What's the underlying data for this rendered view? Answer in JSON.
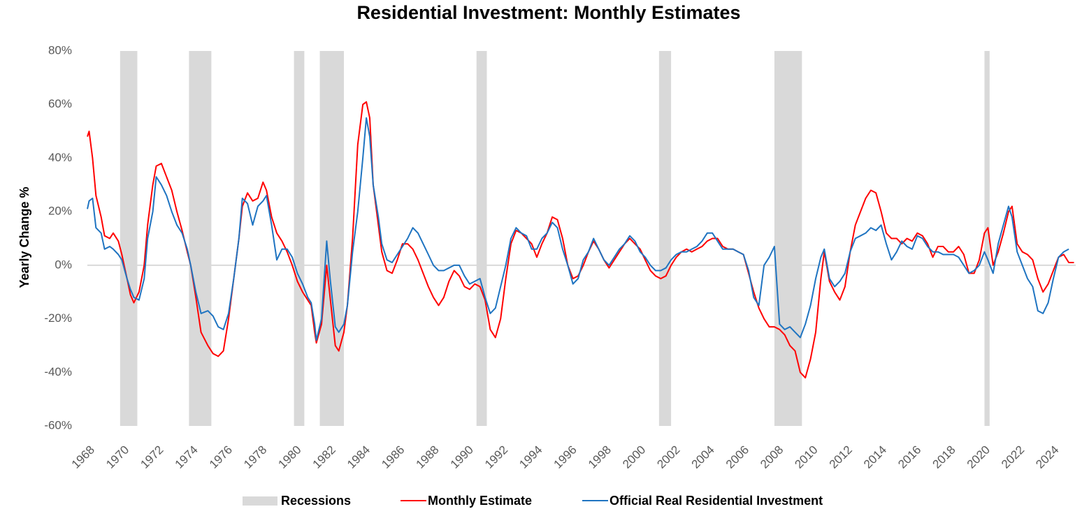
{
  "chart_data": {
    "type": "line",
    "title": "Residential Investment: Monthly Estimates",
    "y_label": "Yearly Change %",
    "x": [
      1968.0,
      1968.1,
      1968.3,
      1968.5,
      1968.8,
      1969.0,
      1969.3,
      1969.5,
      1969.8,
      1970.0,
      1970.3,
      1970.5,
      1970.7,
      1971.0,
      1971.3,
      1971.5,
      1971.8,
      1972.0,
      1972.3,
      1972.6,
      1972.9,
      1973.2,
      1973.5,
      1973.8,
      1974.0,
      1974.3,
      1974.6,
      1975.0,
      1975.3,
      1975.6,
      1975.9,
      1976.2,
      1976.5,
      1976.8,
      1977.0,
      1977.3,
      1977.6,
      1977.9,
      1978.2,
      1978.4,
      1978.7,
      1979.0,
      1979.3,
      1979.6,
      1979.9,
      1980.2,
      1980.5,
      1980.8,
      1981.0,
      1981.2,
      1981.3,
      1981.6,
      1981.9,
      1982.1,
      1982.4,
      1982.6,
      1982.9,
      1983.1,
      1983.4,
      1983.7,
      1984.0,
      1984.2,
      1984.4,
      1984.6,
      1984.9,
      1985.1,
      1985.4,
      1985.7,
      1986.0,
      1986.3,
      1986.6,
      1986.9,
      1987.2,
      1987.5,
      1987.8,
      1988.1,
      1988.4,
      1988.7,
      1989.0,
      1989.3,
      1989.6,
      1989.9,
      1990.2,
      1990.5,
      1990.8,
      1991.1,
      1991.4,
      1991.7,
      1992.0,
      1992.3,
      1992.6,
      1992.9,
      1993.2,
      1993.5,
      1993.8,
      1994.1,
      1994.4,
      1994.7,
      1995.0,
      1995.3,
      1995.6,
      1995.9,
      1996.2,
      1996.5,
      1996.8,
      1997.1,
      1997.4,
      1997.7,
      1998.0,
      1998.3,
      1998.6,
      1998.9,
      1999.2,
      1999.5,
      1999.8,
      2000.1,
      2000.4,
      2000.7,
      2001.0,
      2001.3,
      2001.6,
      2001.9,
      2002.2,
      2002.5,
      2002.8,
      2003.1,
      2003.4,
      2003.7,
      2004.0,
      2004.3,
      2004.6,
      2004.9,
      2005.2,
      2005.5,
      2005.8,
      2006.1,
      2006.4,
      2006.7,
      2007.0,
      2007.3,
      2007.6,
      2007.9,
      2008.2,
      2008.5,
      2008.8,
      2009.1,
      2009.4,
      2009.7,
      2010.0,
      2010.3,
      2010.6,
      2010.8,
      2011.1,
      2011.4,
      2011.7,
      2012.0,
      2012.3,
      2012.6,
      2012.9,
      2013.2,
      2013.5,
      2013.8,
      2014.1,
      2014.4,
      2014.7,
      2015.0,
      2015.3,
      2015.6,
      2015.9,
      2016.2,
      2016.5,
      2016.8,
      2017.1,
      2017.4,
      2017.7,
      2018.0,
      2018.3,
      2018.6,
      2018.9,
      2019.2,
      2019.5,
      2019.8,
      2020.1,
      2020.3,
      2020.6,
      2020.9,
      2021.2,
      2021.5,
      2021.7,
      2022.0,
      2022.3,
      2022.6,
      2022.9,
      2023.2,
      2023.5,
      2023.8,
      2024.1,
      2024.4,
      2024.7,
      2025.0,
      2025.3
    ],
    "series": [
      {
        "name": "Monthly Estimate",
        "color": "#ff0000",
        "values": [
          48,
          50,
          40,
          26,
          18,
          11,
          10,
          12,
          9,
          4,
          -5,
          -11,
          -14,
          -10,
          0,
          15,
          30,
          37,
          38,
          33,
          28,
          20,
          13,
          5,
          0,
          -12,
          -25,
          -30,
          -33,
          -34,
          -32,
          -20,
          -5,
          10,
          22,
          27,
          24,
          25,
          31,
          28,
          18,
          12,
          9,
          5,
          0,
          -6,
          -10,
          -13,
          -15,
          -25,
          -29,
          -22,
          0,
          -12,
          -30,
          -32,
          -25,
          -15,
          10,
          45,
          60,
          61,
          55,
          30,
          15,
          5,
          -2,
          -3,
          2,
          8,
          8,
          6,
          2,
          -3,
          -8,
          -12,
          -15,
          -12,
          -6,
          -2,
          -4,
          -8,
          -9,
          -7,
          -8,
          -13,
          -24,
          -27,
          -20,
          -5,
          8,
          13,
          12,
          10,
          8,
          3,
          8,
          12,
          18,
          17,
          10,
          0,
          -5,
          -4,
          0,
          5,
          9,
          6,
          2,
          -1,
          2,
          5,
          8,
          10,
          8,
          6,
          2,
          -2,
          -4,
          -5,
          -4,
          0,
          3,
          5,
          6,
          5,
          6,
          7,
          9,
          10,
          10,
          7,
          6,
          6,
          5,
          4,
          -3,
          -10,
          -16,
          -20,
          -23,
          -23,
          -24,
          -26,
          -30,
          -32,
          -40,
          -42,
          -35,
          -25,
          -5,
          5,
          -6,
          -10,
          -13,
          -8,
          5,
          15,
          20,
          25,
          28,
          27,
          20,
          12,
          10,
          10,
          8,
          10,
          9,
          12,
          11,
          8,
          3,
          7,
          7,
          5,
          5,
          7,
          4,
          -3,
          -3,
          2,
          12,
          14,
          0,
          5,
          12,
          20,
          22,
          8,
          5,
          4,
          2,
          -5,
          -10,
          -7,
          -2,
          3,
          4,
          1,
          1
        ]
      },
      {
        "name": "Official Real Residential Investment",
        "color": "#1f74c1",
        "values": [
          21,
          24,
          25,
          14,
          12,
          6,
          7,
          6,
          4,
          2,
          -5,
          -9,
          -12,
          -13,
          -5,
          10,
          20,
          33,
          30,
          26,
          20,
          15,
          12,
          6,
          0,
          -10,
          -18,
          -17,
          -19,
          -23,
          -24,
          -18,
          -5,
          10,
          25,
          23,
          15,
          22,
          24,
          26,
          15,
          2,
          6,
          6,
          3,
          -3,
          -7,
          -12,
          -14,
          -22,
          -28,
          -20,
          9,
          -5,
          -23,
          -25,
          -22,
          -15,
          5,
          20,
          40,
          55,
          48,
          30,
          18,
          8,
          2,
          1,
          4,
          7,
          10,
          14,
          12,
          8,
          4,
          0,
          -2,
          -2,
          -1,
          0,
          0,
          -4,
          -7,
          -6,
          -5,
          -12,
          -18,
          -16,
          -8,
          0,
          10,
          14,
          12,
          11,
          6,
          6,
          10,
          12,
          16,
          14,
          6,
          0,
          -7,
          -5,
          2,
          5,
          10,
          6,
          2,
          0,
          3,
          6,
          8,
          11,
          9,
          5,
          3,
          0,
          -2,
          -2,
          -1,
          2,
          4,
          5,
          5,
          6,
          7,
          9,
          12,
          12,
          9,
          6,
          6,
          6,
          5,
          4,
          -2,
          -12,
          -15,
          0,
          3,
          7,
          -22,
          -24,
          -23,
          -25,
          -27,
          -22,
          -15,
          -5,
          3,
          6,
          -5,
          -8,
          -6,
          -3,
          5,
          10,
          11,
          12,
          14,
          13,
          15,
          8,
          2,
          5,
          9,
          7,
          6,
          11,
          10,
          7,
          5,
          5,
          4,
          4,
          4,
          3,
          0,
          -3,
          -2,
          0,
          5,
          2,
          -3,
          8,
          15,
          22,
          18,
          5,
          0,
          -5,
          -8,
          -17,
          -18,
          -14,
          -5,
          3,
          5,
          6,
          null
        ]
      }
    ],
    "recessions": {
      "name": "Recessions",
      "color": "#d9d9d9",
      "periods": [
        [
          1969.9,
          1970.9
        ],
        [
          1973.9,
          1975.2
        ],
        [
          1980.0,
          1980.6
        ],
        [
          1981.5,
          1982.9
        ],
        [
          1990.6,
          1991.2
        ],
        [
          2001.2,
          2001.9
        ],
        [
          2007.9,
          2009.5
        ],
        [
          2020.1,
          2020.4
        ]
      ]
    },
    "xlim": [
      1968,
      2025.4
    ],
    "xticks": [
      1968,
      1970,
      1972,
      1974,
      1976,
      1978,
      1980,
      1982,
      1984,
      1986,
      1988,
      1990,
      1992,
      1994,
      1996,
      1998,
      2000,
      2002,
      2004,
      2006,
      2008,
      2010,
      2012,
      2014,
      2016,
      2018,
      2020,
      2022,
      2024
    ],
    "ylim": [
      -60,
      80
    ],
    "yticks": [
      {
        "value": -60,
        "label": "-60%"
      },
      {
        "value": -40,
        "label": "-40%"
      },
      {
        "value": -20,
        "label": "-20%"
      },
      {
        "value": 0,
        "label": "0%"
      },
      {
        "value": 20,
        "label": "20%"
      },
      {
        "value": 40,
        "label": "40%"
      },
      {
        "value": 60,
        "label": "60%"
      },
      {
        "value": 80,
        "label": "80%"
      }
    ],
    "zero_line": true
  }
}
